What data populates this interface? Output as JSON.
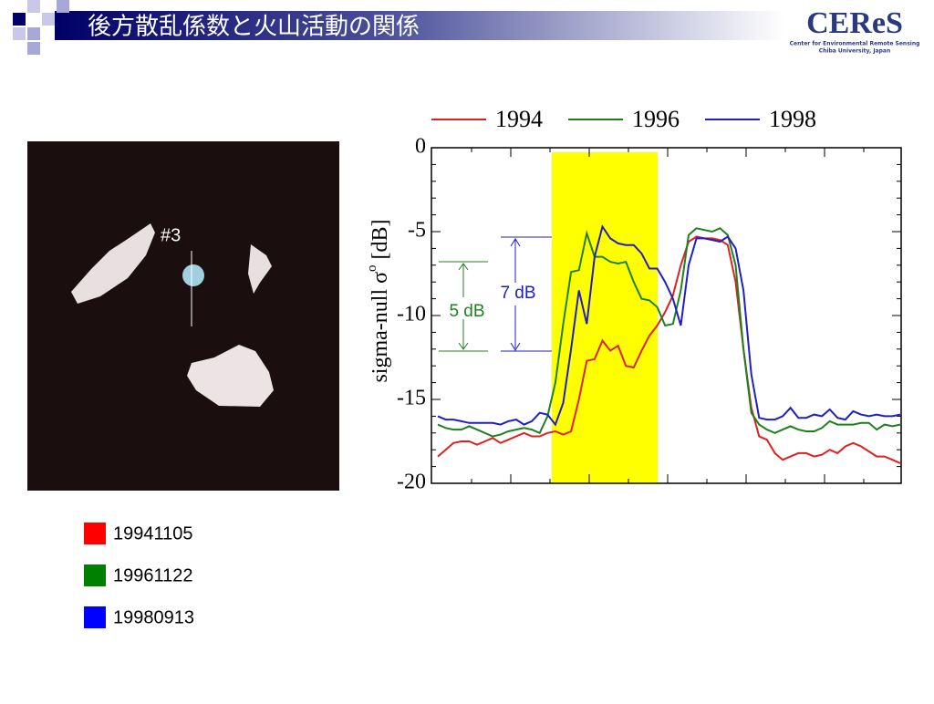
{
  "header": {
    "title": "後方散乱係数と火山活動の関係",
    "logo": "CEReS",
    "logo_line1": "Center for Environmental Remote Sensing",
    "logo_line2": "Chiba University, Japan"
  },
  "image": {
    "label": "#3"
  },
  "image_legend": [
    {
      "label": "19941105",
      "color": "#ff0000"
    },
    {
      "label": "19961122",
      "color": "#008000"
    },
    {
      "label": "19980913",
      "color": "#0000ff"
    }
  ],
  "chart_data": {
    "type": "line",
    "y_label": "sigma-null σ",
    "y_label_sup": "o",
    "y_label_unit": "[dB]",
    "annotations": [
      "5 dB",
      "7 dB"
    ],
    "ylim": [
      -20,
      0
    ],
    "yticks": [
      0,
      -5,
      -10,
      -15,
      -20
    ],
    "series": [
      {
        "name": "1994",
        "color": "#e02020",
        "values": [
          -18.4,
          -18.0,
          -17.6,
          -17.5,
          -17.5,
          -17.7,
          -17.5,
          -17.3,
          -17.6,
          -17.4,
          -17.2,
          -17.0,
          -17.2,
          -17.2,
          -17.0,
          -16.9,
          -17.1,
          -16.9,
          -15.0,
          -12.7,
          -12.6,
          -11.5,
          -12.1,
          -11.8,
          -13.0,
          -13.1,
          -12.1,
          -11.2,
          -10.6,
          -9.8,
          -8.8,
          -7.0,
          -5.6,
          -5.3,
          -5.4,
          -5.4,
          -5.5,
          -5.8,
          -8.0,
          -12.0,
          -15.5,
          -17.2,
          -17.4,
          -18.2,
          -18.6,
          -18.4,
          -18.2,
          -18.2,
          -18.4,
          -18.3,
          -18.0,
          -18.2,
          -17.8,
          -17.6,
          -17.8,
          -18.1,
          -18.4,
          -18.4,
          -18.6,
          -18.8
        ]
      },
      {
        "name": "1996",
        "color": "#208020",
        "values": [
          -16.5,
          -16.7,
          -16.8,
          -16.8,
          -16.6,
          -16.8,
          -17.0,
          -17.2,
          -17.1,
          -16.9,
          -16.8,
          -16.7,
          -16.8,
          -17.0,
          -16.0,
          -14.0,
          -10.5,
          -7.4,
          -7.3,
          -5.1,
          -6.5,
          -6.5,
          -6.8,
          -6.9,
          -6.8,
          -8.0,
          -9.0,
          -9.1,
          -9.5,
          -10.6,
          -10.5,
          -8.5,
          -5.2,
          -4.8,
          -4.9,
          -5.0,
          -4.8,
          -5.2,
          -7.0,
          -12.0,
          -15.8,
          -16.5,
          -16.8,
          -17.0,
          -16.8,
          -16.6,
          -16.8,
          -16.9,
          -16.9,
          -16.7,
          -16.3,
          -16.5,
          -16.5,
          -16.5,
          -16.4,
          -16.4,
          -16.8,
          -16.5,
          -16.6,
          -16.5
        ]
      },
      {
        "name": "1998",
        "color": "#2020c0",
        "values": [
          -16.0,
          -16.2,
          -16.2,
          -16.3,
          -16.4,
          -16.4,
          -16.4,
          -16.4,
          -16.5,
          -16.3,
          -16.2,
          -16.5,
          -16.3,
          -15.8,
          -15.9,
          -16.5,
          -15.2,
          -12.0,
          -8.5,
          -10.5,
          -6.5,
          -4.7,
          -5.4,
          -5.7,
          -5.8,
          -5.8,
          -6.3,
          -7.2,
          -7.2,
          -8.0,
          -9.0,
          -10.6,
          -7.0,
          -5.4,
          -5.4,
          -5.5,
          -5.6,
          -5.3,
          -6.0,
          -8.5,
          -13.5,
          -16.1,
          -16.2,
          -16.2,
          -16.0,
          -15.5,
          -16.1,
          -16.1,
          -15.9,
          -16.0,
          -15.6,
          -16.1,
          -16.2,
          -15.7,
          -15.9,
          -16.0,
          -15.9,
          -16.0,
          -16.0,
          -15.9
        ]
      }
    ]
  }
}
